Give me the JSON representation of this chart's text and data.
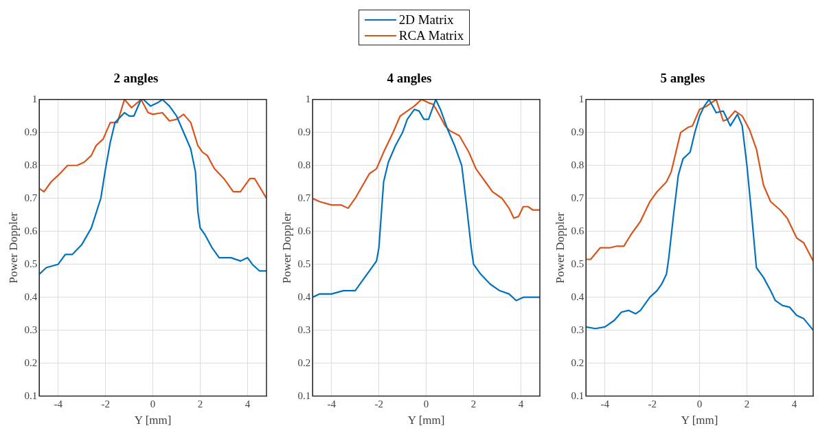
{
  "chart_data": [
    {
      "type": "line",
      "title": "2 angles",
      "xlabel": "Y [mm]",
      "ylabel": "Power Doppler",
      "xlim": [
        -4.8,
        4.8
      ],
      "xticks": [
        -4,
        -2,
        0,
        2,
        4
      ],
      "ylim": [
        0.1,
        1
      ],
      "yticks": [
        0.1,
        0.2,
        0.3,
        0.4,
        0.5,
        0.6,
        0.7,
        0.8,
        0.9,
        1
      ],
      "grid": true,
      "legend": "top",
      "line_style": "solid",
      "series": [
        {
          "name": "2D Matrix",
          "color": "#0072bd",
          "x": [
            -4.8,
            -4.5,
            -4.0,
            -3.7,
            -3.4,
            -3.0,
            -2.6,
            -2.2,
            -2.0,
            -1.8,
            -1.6,
            -1.2,
            -1.0,
            -0.8,
            -0.5,
            -0.4,
            -0.1,
            0.2,
            0.4,
            0.7,
            1.0,
            1.3,
            1.6,
            1.8,
            1.9,
            2.0,
            2.2,
            2.5,
            2.8,
            3.1,
            3.3,
            3.7,
            4.0,
            4.2,
            4.5,
            4.8
          ],
          "values": [
            0.47,
            0.49,
            0.5,
            0.53,
            0.53,
            0.56,
            0.61,
            0.7,
            0.79,
            0.87,
            0.93,
            0.96,
            0.95,
            0.95,
            1.0,
            1.0,
            0.98,
            0.99,
            1.0,
            0.98,
            0.95,
            0.9,
            0.85,
            0.78,
            0.66,
            0.61,
            0.59,
            0.55,
            0.52,
            0.52,
            0.52,
            0.51,
            0.52,
            0.5,
            0.48,
            0.48
          ]
        },
        {
          "name": "RCA Matrix",
          "color": "#d95319",
          "x": [
            -4.8,
            -4.6,
            -4.3,
            -4.0,
            -3.6,
            -3.2,
            -2.9,
            -2.6,
            -2.4,
            -2.1,
            -1.8,
            -1.5,
            -1.2,
            -0.9,
            -0.5,
            -0.2,
            0.0,
            0.4,
            0.7,
            1.0,
            1.3,
            1.6,
            1.9,
            2.1,
            2.3,
            2.6,
            3.0,
            3.4,
            3.7,
            4.1,
            4.3,
            4.8
          ],
          "values": [
            0.73,
            0.72,
            0.75,
            0.77,
            0.8,
            0.8,
            0.81,
            0.83,
            0.86,
            0.88,
            0.93,
            0.93,
            1.0,
            0.975,
            1.0,
            0.96,
            0.955,
            0.96,
            0.935,
            0.94,
            0.955,
            0.93,
            0.86,
            0.84,
            0.83,
            0.79,
            0.76,
            0.72,
            0.72,
            0.76,
            0.76,
            0.7
          ]
        }
      ]
    },
    {
      "type": "line",
      "title": "4 angles",
      "xlabel": "Y [mm]",
      "ylabel": "Power Doppler",
      "xlim": [
        -4.8,
        4.8
      ],
      "xticks": [
        -4,
        -2,
        0,
        2,
        4
      ],
      "ylim": [
        0.1,
        1
      ],
      "yticks": [
        0.1,
        0.2,
        0.3,
        0.4,
        0.5,
        0.6,
        0.7,
        0.8,
        0.9,
        1
      ],
      "grid": true,
      "line_style": "solid",
      "series": [
        {
          "color": "#0072bd",
          "x": [
            -4.8,
            -4.5,
            -4.0,
            -3.5,
            -3.0,
            -2.7,
            -2.4,
            -2.1,
            -2.0,
            -1.9,
            -1.8,
            -1.6,
            -1.3,
            -1.0,
            -0.8,
            -0.5,
            -0.3,
            -0.1,
            0.1,
            0.4,
            0.6,
            0.9,
            1.2,
            1.5,
            1.7,
            1.9,
            2.0,
            2.3,
            2.7,
            3.1,
            3.5,
            3.8,
            4.1,
            4.5,
            4.8
          ],
          "values": [
            0.4,
            0.41,
            0.41,
            0.42,
            0.42,
            0.45,
            0.48,
            0.51,
            0.55,
            0.65,
            0.75,
            0.81,
            0.86,
            0.9,
            0.94,
            0.97,
            0.965,
            0.94,
            0.94,
            1.0,
            0.97,
            0.91,
            0.86,
            0.8,
            0.68,
            0.55,
            0.5,
            0.47,
            0.44,
            0.42,
            0.41,
            0.39,
            0.4,
            0.4,
            0.4
          ]
        },
        {
          "color": "#d95319",
          "x": [
            -4.8,
            -4.5,
            -4.0,
            -3.6,
            -3.3,
            -3.0,
            -2.6,
            -2.4,
            -2.1,
            -1.8,
            -1.4,
            -1.1,
            -0.8,
            -0.5,
            -0.2,
            0.1,
            0.3,
            0.5,
            0.8,
            1.0,
            1.4,
            1.8,
            2.1,
            2.5,
            2.8,
            3.2,
            3.5,
            3.7,
            3.9,
            4.1,
            4.3,
            4.5,
            4.8
          ],
          "values": [
            0.7,
            0.69,
            0.68,
            0.68,
            0.67,
            0.7,
            0.75,
            0.775,
            0.79,
            0.84,
            0.9,
            0.95,
            0.965,
            0.98,
            1.0,
            0.99,
            0.985,
            0.96,
            0.92,
            0.905,
            0.89,
            0.84,
            0.79,
            0.75,
            0.72,
            0.7,
            0.67,
            0.64,
            0.645,
            0.675,
            0.675,
            0.665,
            0.665
          ]
        }
      ]
    },
    {
      "type": "line",
      "title": "5 angles",
      "xlabel": "Y [mm]",
      "ylabel": "Power Doppler",
      "xlim": [
        -4.8,
        4.8
      ],
      "xticks": [
        -4,
        -2,
        0,
        2,
        4
      ],
      "ylim": [
        0.1,
        1
      ],
      "yticks": [
        0.1,
        0.2,
        0.3,
        0.4,
        0.5,
        0.6,
        0.7,
        0.8,
        0.9,
        1
      ],
      "grid": true,
      "line_style": "solid",
      "series": [
        {
          "color": "#0072bd",
          "x": [
            -4.8,
            -4.4,
            -4.0,
            -3.6,
            -3.3,
            -3.0,
            -2.7,
            -2.5,
            -2.1,
            -1.8,
            -1.6,
            -1.4,
            -1.3,
            -1.1,
            -0.9,
            -0.7,
            -0.4,
            -0.2,
            0.0,
            0.2,
            0.4,
            0.7,
            1.0,
            1.3,
            1.6,
            1.8,
            2.0,
            2.2,
            2.4,
            2.7,
            3.0,
            3.2,
            3.5,
            3.8,
            4.1,
            4.4,
            4.8
          ],
          "values": [
            0.31,
            0.305,
            0.31,
            0.33,
            0.355,
            0.36,
            0.35,
            0.36,
            0.4,
            0.42,
            0.44,
            0.47,
            0.52,
            0.65,
            0.77,
            0.82,
            0.84,
            0.9,
            0.95,
            0.98,
            1.0,
            0.96,
            0.965,
            0.92,
            0.955,
            0.92,
            0.8,
            0.65,
            0.49,
            0.46,
            0.42,
            0.39,
            0.375,
            0.37,
            0.345,
            0.335,
            0.3
          ]
        },
        {
          "color": "#d95319",
          "x": [
            -4.8,
            -4.6,
            -4.2,
            -3.8,
            -3.5,
            -3.2,
            -2.9,
            -2.5,
            -2.1,
            -1.8,
            -1.4,
            -1.2,
            -1.0,
            -0.8,
            -0.5,
            -0.3,
            0.0,
            0.3,
            0.5,
            0.7,
            1.0,
            1.2,
            1.5,
            1.8,
            2.1,
            2.4,
            2.7,
            3.0,
            3.4,
            3.7,
            4.1,
            4.4,
            4.8
          ],
          "values": [
            0.515,
            0.515,
            0.55,
            0.55,
            0.555,
            0.555,
            0.59,
            0.63,
            0.69,
            0.72,
            0.75,
            0.78,
            0.84,
            0.9,
            0.915,
            0.92,
            0.97,
            0.98,
            0.99,
            1.0,
            0.935,
            0.94,
            0.965,
            0.95,
            0.91,
            0.85,
            0.74,
            0.69,
            0.665,
            0.64,
            0.58,
            0.565,
            0.51
          ]
        }
      ]
    }
  ]
}
